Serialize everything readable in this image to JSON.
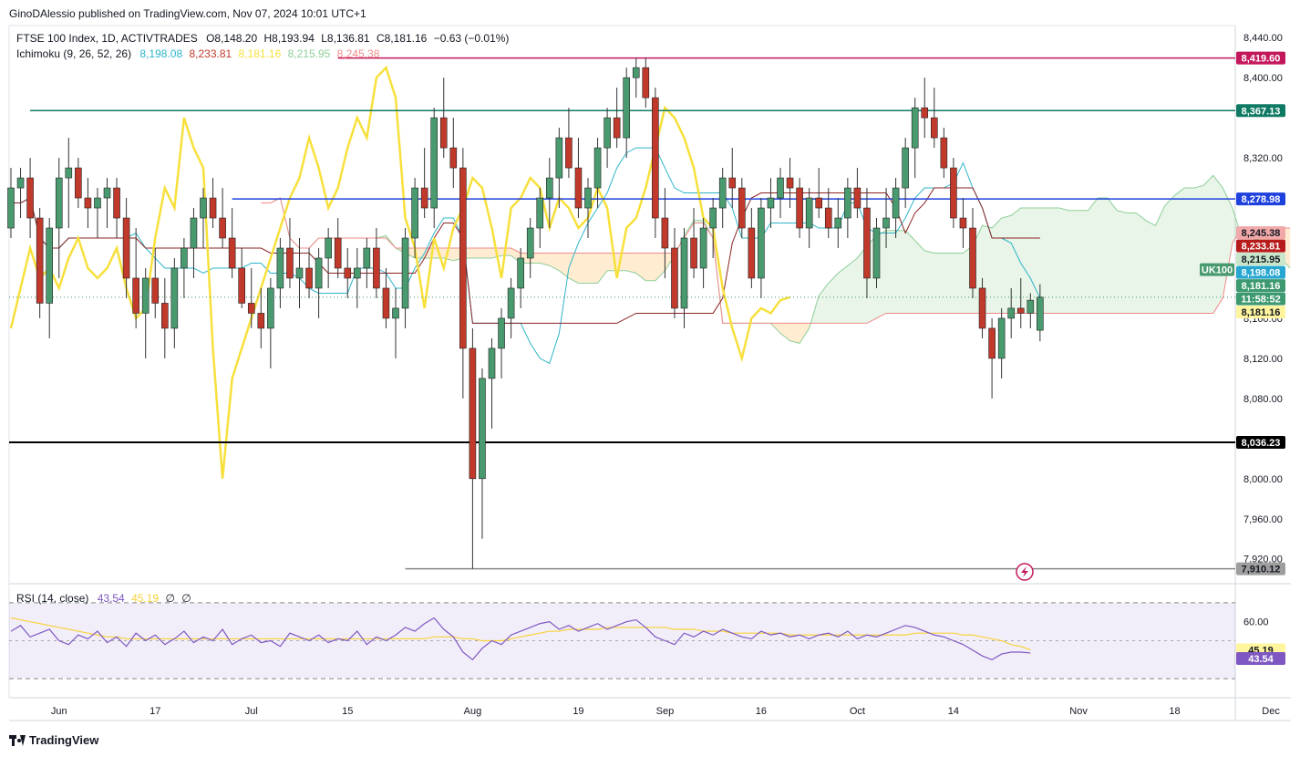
{
  "header": {
    "text": "GinoDAlessio published on TradingView.com, Nov 07, 2024 10:01 UTC+1"
  },
  "legend": {
    "symbol": "FTSE 100 Index, 1D, ACTIVTRADES",
    "o": "O8,148.20",
    "h": "H8,193.94",
    "l": "L8,136.81",
    "c": "C8,181.16",
    "chg": "−0.63 (−0.01%)",
    "ichimoku_label": "Ichimoku (9, 26, 52, 26)",
    "ichimoku_values": [
      {
        "v": "8,198.08",
        "color": "#2db4c8"
      },
      {
        "v": "8,233.81",
        "color": "#c0392b"
      },
      {
        "v": "8,181.16",
        "color": "#f7e03c"
      },
      {
        "v": "8,215.95",
        "color": "#8fcf9a"
      },
      {
        "v": "8,245.38",
        "color": "#f08a8a"
      }
    ],
    "rsi_label": "RSI (14, close)",
    "rsi_v1": "43.54",
    "rsi_v2": "45.19",
    "rsi_v3": "∅",
    "rsi_v4": "∅"
  },
  "footer": {
    "brand": "TradingView"
  },
  "chart_data": {
    "type": "candlestick",
    "x_ticks": [
      {
        "label": "Jun",
        "idx": 5
      },
      {
        "label": "17",
        "idx": 15
      },
      {
        "label": "Jul",
        "idx": 25
      },
      {
        "label": "15",
        "idx": 35
      },
      {
        "label": "Aug",
        "idx": 48
      },
      {
        "label": "19",
        "idx": 59
      },
      {
        "label": "Sep",
        "idx": 68
      },
      {
        "label": "16",
        "idx": 78
      },
      {
        "label": "Oct",
        "idx": 88
      },
      {
        "label": "14",
        "idx": 98
      },
      {
        "label": "Nov",
        "idx": 111
      },
      {
        "label": "18",
        "idx": 121
      },
      {
        "label": "Dec",
        "idx": 131
      }
    ],
    "y_ticks": [
      7920,
      7960,
      8000,
      8080,
      8120,
      8160,
      8320,
      8400,
      8440
    ],
    "y_tick_labels": [
      "7,920.00",
      "7,960.00",
      "8,000.00",
      "8,080.00",
      "8,120.00",
      "8,160.00",
      "8,320.00",
      "8,400.00",
      "8,440.00"
    ],
    "ylim": [
      7897,
      8452
    ],
    "candles": [
      [
        8250,
        8310,
        8240,
        8290
      ],
      [
        8290,
        8310,
        8260,
        8300
      ],
      [
        8300,
        8320,
        8240,
        8260
      ],
      [
        8260,
        8270,
        8160,
        8175
      ],
      [
        8175,
        8260,
        8140,
        8250
      ],
      [
        8250,
        8320,
        8200,
        8300
      ],
      [
        8300,
        8340,
        8250,
        8310
      ],
      [
        8310,
        8320,
        8270,
        8280
      ],
      [
        8280,
        8300,
        8250,
        8270
      ],
      [
        8270,
        8290,
        8240,
        8280
      ],
      [
        8280,
        8300,
        8250,
        8290
      ],
      [
        8290,
        8300,
        8240,
        8260
      ],
      [
        8260,
        8280,
        8180,
        8200
      ],
      [
        8200,
        8250,
        8150,
        8165
      ],
      [
        8165,
        8210,
        8120,
        8200
      ],
      [
        8200,
        8230,
        8160,
        8175
      ],
      [
        8175,
        8200,
        8120,
        8150
      ],
      [
        8150,
        8220,
        8130,
        8210
      ],
      [
        8210,
        8240,
        8180,
        8230
      ],
      [
        8230,
        8270,
        8200,
        8260
      ],
      [
        8260,
        8290,
        8230,
        8280
      ],
      [
        8280,
        8300,
        8250,
        8260
      ],
      [
        8260,
        8290,
        8230,
        8240
      ],
      [
        8240,
        8270,
        8200,
        8210
      ],
      [
        8210,
        8230,
        8170,
        8175
      ],
      [
        8175,
        8210,
        8150,
        8165
      ],
      [
        8165,
        8190,
        8130,
        8150
      ],
      [
        8150,
        8200,
        8110,
        8190
      ],
      [
        8190,
        8240,
        8170,
        8230
      ],
      [
        8230,
        8260,
        8190,
        8200
      ],
      [
        8200,
        8240,
        8170,
        8210
      ],
      [
        8210,
        8230,
        8180,
        8190
      ],
      [
        8190,
        8230,
        8160,
        8220
      ],
      [
        8220,
        8250,
        8190,
        8240
      ],
      [
        8240,
        8260,
        8200,
        8210
      ],
      [
        8210,
        8230,
        8180,
        8200
      ],
      [
        8200,
        8230,
        8170,
        8210
      ],
      [
        8210,
        8240,
        8190,
        8230
      ],
      [
        8230,
        8250,
        8180,
        8190
      ],
      [
        8190,
        8210,
        8150,
        8160
      ],
      [
        8160,
        8190,
        8120,
        8170
      ],
      [
        8170,
        8250,
        8150,
        8240
      ],
      [
        8240,
        8300,
        8220,
        8290
      ],
      [
        8290,
        8330,
        8260,
        8270
      ],
      [
        8270,
        8370,
        8250,
        8360
      ],
      [
        8360,
        8400,
        8320,
        8330
      ],
      [
        8330,
        8360,
        8290,
        8310
      ],
      [
        8310,
        8330,
        8080,
        8130
      ],
      [
        8130,
        8150,
        7910,
        8000
      ],
      [
        8000,
        8110,
        7940,
        8100
      ],
      [
        8100,
        8140,
        8050,
        8130
      ],
      [
        8130,
        8170,
        8100,
        8160
      ],
      [
        8160,
        8200,
        8140,
        8190
      ],
      [
        8190,
        8230,
        8170,
        8220
      ],
      [
        8220,
        8260,
        8200,
        8250
      ],
      [
        8250,
        8290,
        8230,
        8280
      ],
      [
        8280,
        8320,
        8250,
        8300
      ],
      [
        8300,
        8350,
        8270,
        8340
      ],
      [
        8340,
        8370,
        8300,
        8310
      ],
      [
        8310,
        8340,
        8260,
        8270
      ],
      [
        8270,
        8300,
        8240,
        8290
      ],
      [
        8290,
        8340,
        8270,
        8330
      ],
      [
        8330,
        8370,
        8310,
        8360
      ],
      [
        8360,
        8390,
        8330,
        8340
      ],
      [
        8340,
        8410,
        8320,
        8400
      ],
      [
        8400,
        8420,
        8380,
        8410
      ],
      [
        8410,
        8420,
        8370,
        8380
      ],
      [
        8380,
        8390,
        8240,
        8260
      ],
      [
        8260,
        8290,
        8200,
        8230
      ],
      [
        8230,
        8250,
        8160,
        8170
      ],
      [
        8170,
        8250,
        8150,
        8240
      ],
      [
        8240,
        8270,
        8200,
        8210
      ],
      [
        8210,
        8260,
        8190,
        8250
      ],
      [
        8250,
        8280,
        8220,
        8270
      ],
      [
        8270,
        8310,
        8250,
        8300
      ],
      [
        8300,
        8330,
        8270,
        8290
      ],
      [
        8290,
        8300,
        8240,
        8250
      ],
      [
        8250,
        8270,
        8190,
        8200
      ],
      [
        8200,
        8280,
        8180,
        8270
      ],
      [
        8270,
        8300,
        8250,
        8280
      ],
      [
        8280,
        8310,
        8260,
        8300
      ],
      [
        8300,
        8320,
        8270,
        8290
      ],
      [
        8290,
        8300,
        8240,
        8250
      ],
      [
        8250,
        8290,
        8230,
        8280
      ],
      [
        8280,
        8310,
        8260,
        8270
      ],
      [
        8270,
        8290,
        8240,
        8250
      ],
      [
        8250,
        8280,
        8230,
        8260
      ],
      [
        8260,
        8300,
        8240,
        8290
      ],
      [
        8290,
        8310,
        8260,
        8270
      ],
      [
        8270,
        8290,
        8180,
        8200
      ],
      [
        8200,
        8260,
        8190,
        8250
      ],
      [
        8250,
        8290,
        8230,
        8260
      ],
      [
        8260,
        8300,
        8240,
        8290
      ],
      [
        8290,
        8340,
        8270,
        8330
      ],
      [
        8330,
        8380,
        8300,
        8370
      ],
      [
        8370,
        8400,
        8340,
        8360
      ],
      [
        8360,
        8390,
        8330,
        8340
      ],
      [
        8340,
        8350,
        8300,
        8310
      ],
      [
        8310,
        8320,
        8250,
        8260
      ],
      [
        8260,
        8280,
        8230,
        8250
      ],
      [
        8250,
        8270,
        8180,
        8190
      ],
      [
        8190,
        8200,
        8140,
        8150
      ],
      [
        8150,
        8160,
        8080,
        8120
      ],
      [
        8120,
        8170,
        8100,
        8160
      ],
      [
        8160,
        8190,
        8140,
        8170
      ],
      [
        8170,
        8200,
        8150,
        8165
      ],
      [
        8165,
        8185,
        8150,
        8178
      ],
      [
        8148,
        8194,
        8137,
        8181
      ]
    ],
    "price_levels": [
      {
        "value": 8419.6,
        "label": "8,419.60",
        "color": "#c2185b",
        "bg": "#c2185b",
        "fg": "#ffffff",
        "start_idx": 34
      },
      {
        "value": 8367.13,
        "label": "8,367.13",
        "color": "#0f7a63",
        "bg": "#0f7a63",
        "fg": "#ffffff",
        "start_idx": 2
      },
      {
        "value": 8278.98,
        "label": "8,278.98",
        "color": "#1e40dd",
        "bg": "#1e40dd",
        "fg": "#ffffff",
        "start_idx": 23
      },
      {
        "value": 8036.23,
        "label": "8,036.23",
        "color": "#000000",
        "bg": "#000000",
        "fg": "#ffffff",
        "start_idx": -1
      },
      {
        "value": 7910.12,
        "label": "7,910.12",
        "color": "#888888",
        "bg": "#9e9e9e",
        "fg": "#131722",
        "start_idx": 41
      }
    ],
    "axis_tags": [
      {
        "value": 8245.38,
        "label": "8,245.38",
        "bg": "#f0a8a8",
        "fg": "#131722"
      },
      {
        "value": 8233.81,
        "label": "8,233.81",
        "bg": "#b71c1c",
        "fg": "#ffffff"
      },
      {
        "value": 8215.95,
        "label": "8,215.95",
        "bg": "#c8e6c9",
        "fg": "#131722"
      },
      {
        "value": 8198.08,
        "label": "8,198.08",
        "bg": "#26a6d1",
        "fg": "#ffffff"
      },
      {
        "value": 8181.16,
        "label": "8,181.16",
        "bg": "#3d9970",
        "fg": "#ffffff"
      },
      {
        "value": 8181.16,
        "label": "11:58:52",
        "bg": "#3d9970",
        "fg": "#ffffff",
        "offset": 13
      },
      {
        "value": 8181.16,
        "label": "8,181.16",
        "bg": "#fff59d",
        "fg": "#131722",
        "offset": 28
      }
    ],
    "current_badge": "UK100",
    "rsi": {
      "ylim": [
        20,
        80
      ],
      "ticks": [
        {
          "value": 60,
          "label": "60.00"
        },
        {
          "value": 40,
          "label": "40.00"
        }
      ],
      "tag_rsi": {
        "value": 43.54,
        "label": "43.54"
      },
      "tag_ma": {
        "value": 45.19,
        "label": "45.19"
      },
      "values": [
        55,
        58,
        52,
        54,
        56,
        50,
        48,
        53,
        51,
        55,
        49,
        52,
        47,
        54,
        50,
        53,
        48,
        51,
        55,
        49,
        52,
        50,
        56,
        48,
        51,
        53,
        49,
        50,
        47,
        54,
        52,
        50,
        53,
        49,
        51,
        50,
        55,
        48,
        52,
        50,
        53,
        57,
        55,
        59,
        62,
        56,
        52,
        44,
        40,
        46,
        50,
        48,
        53,
        55,
        57,
        59,
        60,
        56,
        58,
        55,
        57,
        59,
        56,
        58,
        60,
        61,
        57,
        52,
        50,
        48,
        54,
        52,
        55,
        53,
        56,
        54,
        52,
        51,
        55,
        53,
        54,
        52,
        53,
        51,
        53,
        54,
        52,
        55,
        51,
        53,
        52,
        54,
        56,
        58,
        57,
        55,
        53,
        52,
        50,
        48,
        45,
        42,
        40,
        43,
        44,
        44,
        43.54
      ],
      "ma": [
        62,
        61,
        60,
        59,
        58,
        57,
        56,
        55,
        54,
        53,
        52,
        52,
        51,
        51,
        51,
        51,
        51,
        51,
        51,
        51,
        51,
        51,
        51,
        51,
        51,
        51,
        51,
        51,
        51,
        51,
        51,
        51,
        51,
        51,
        51,
        51,
        51,
        51,
        51,
        51,
        51,
        51,
        51,
        51,
        52,
        52,
        52,
        51,
        51,
        50,
        50,
        50,
        51,
        52,
        53,
        54,
        55,
        55,
        56,
        56,
        56,
        56,
        57,
        57,
        57,
        57,
        57,
        57,
        57,
        56,
        56,
        56,
        55,
        55,
        55,
        54,
        54,
        54,
        54,
        54,
        54,
        53,
        53,
        53,
        53,
        53,
        53,
        53,
        53,
        53,
        53,
        53,
        53,
        53,
        54,
        54,
        54,
        54,
        54,
        53,
        53,
        52,
        51,
        50,
        48,
        47,
        45.19
      ]
    }
  }
}
